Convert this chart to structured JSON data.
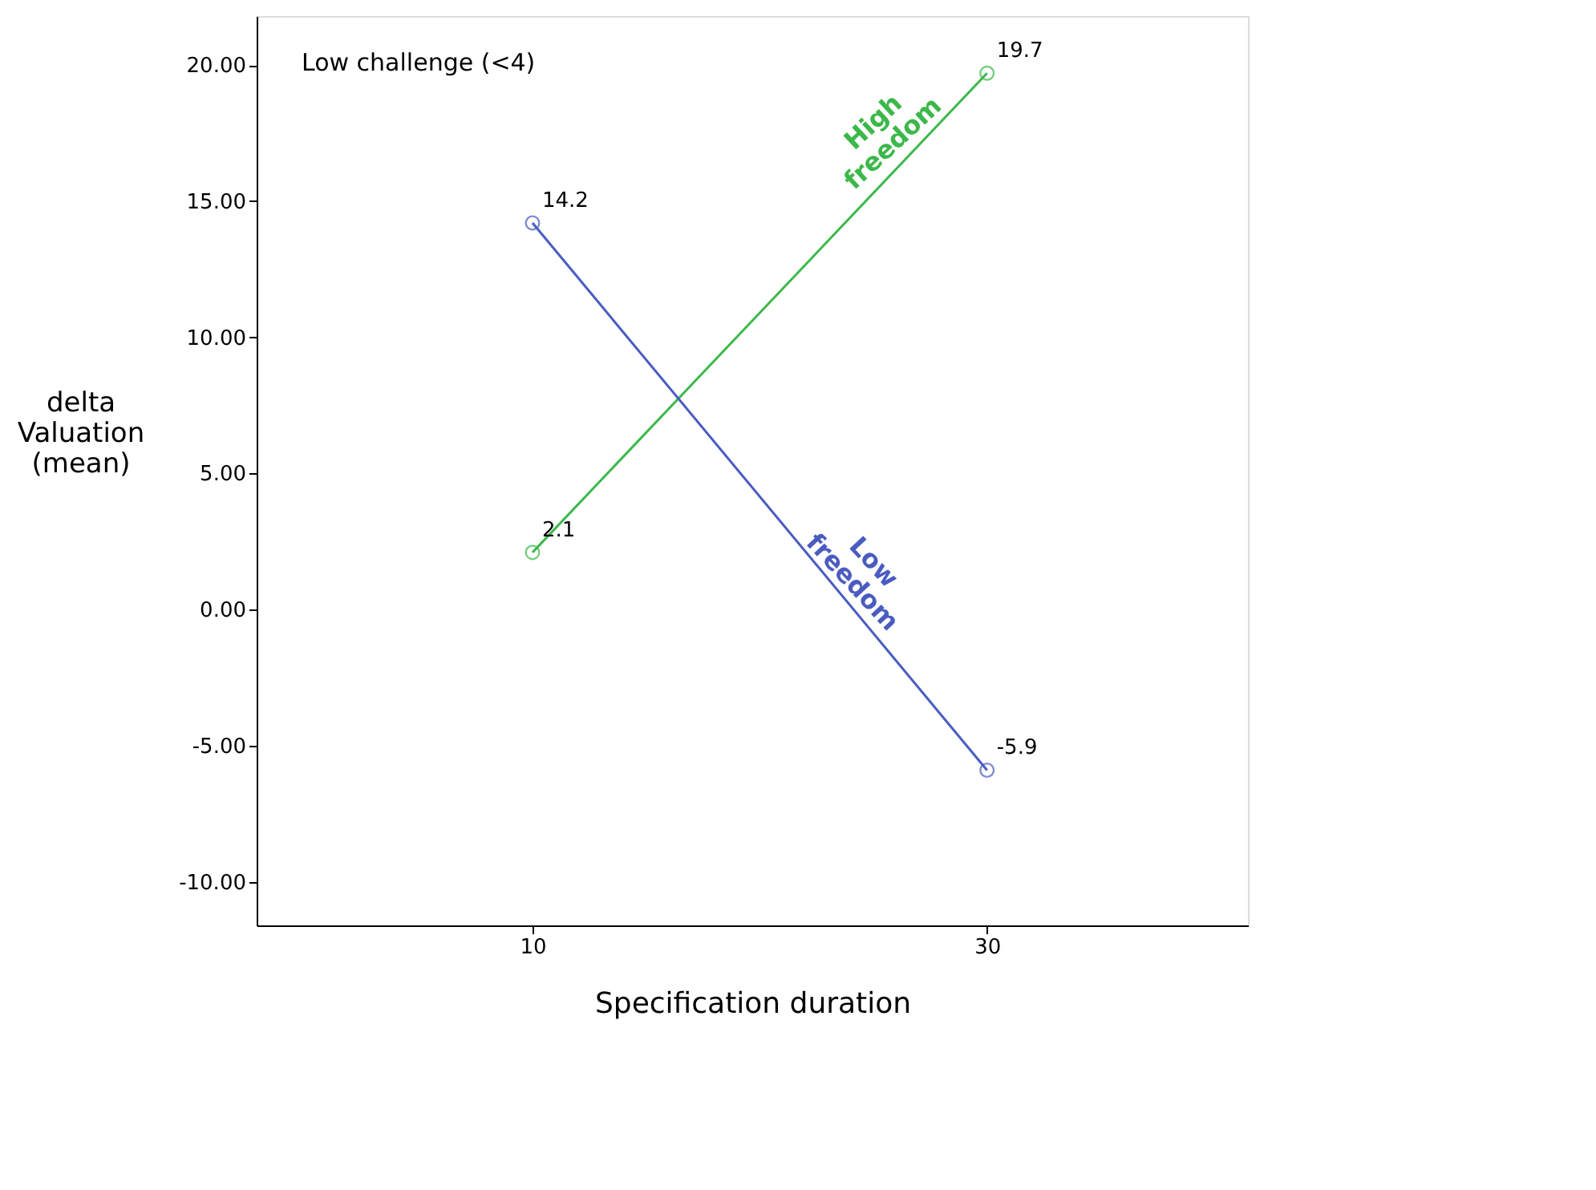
{
  "chart_data": {
    "type": "line",
    "xlabel": "Specification duration",
    "ylabel": "delta\nValuation\n(mean)",
    "categories": [
      "10",
      "30"
    ],
    "series": [
      {
        "name": "High freedom",
        "color": "#3cb84a",
        "values": [
          2.1,
          19.7
        ]
      },
      {
        "name": "Low freedom",
        "color": "#4a5cc0",
        "values": [
          14.2,
          -5.9
        ]
      }
    ],
    "ylim": [
      -11.6,
      21.8
    ],
    "yticks": [
      {
        "value": -10,
        "label": "-10.00"
      },
      {
        "value": -5,
        "label": "-5.00"
      },
      {
        "value": 0,
        "label": "0.00"
      },
      {
        "value": 5,
        "label": "5.00"
      },
      {
        "value": 10,
        "label": "10.00"
      },
      {
        "value": 15,
        "label": "15.00"
      },
      {
        "value": 20,
        "label": "20.00"
      }
    ],
    "annotations": [
      "Low challenge (<4)"
    ],
    "data_labels": true,
    "marker": "circle",
    "legend": false,
    "grid": false
  }
}
